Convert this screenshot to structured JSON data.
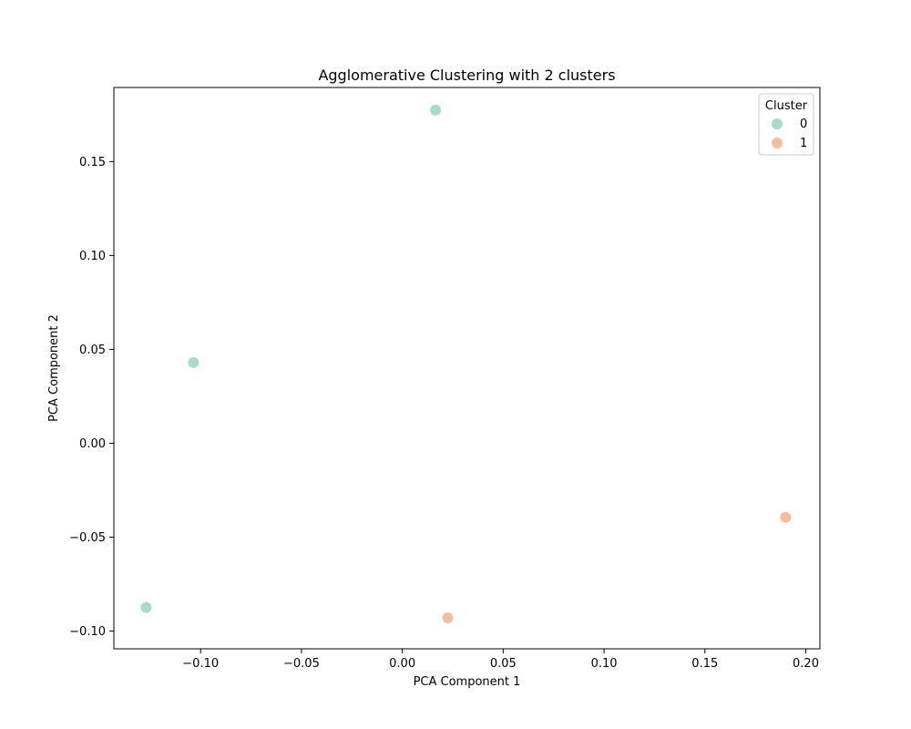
{
  "chart_data": {
    "type": "scatter",
    "title": "Agglomerative Clustering with 2 clusters",
    "xlabel": "PCA Component 1",
    "ylabel": "PCA Component 2",
    "xlim": [
      -0.143,
      0.207
    ],
    "ylim": [
      -0.1095,
      0.1895
    ],
    "xticks": [
      -0.1,
      -0.05,
      0.0,
      0.05,
      0.1,
      0.15,
      0.2
    ],
    "xtick_labels": [
      "−0.10",
      "−0.05",
      "0.00",
      "0.05",
      "0.10",
      "0.15",
      "0.20"
    ],
    "yticks": [
      -0.1,
      -0.05,
      0.0,
      0.05,
      0.1,
      0.15
    ],
    "ytick_labels": [
      "−0.10",
      "−0.05",
      "0.00",
      "0.05",
      "0.10",
      "0.15"
    ],
    "grid": false,
    "legend": {
      "title": "Cluster",
      "placement": "top-right"
    },
    "series": [
      {
        "name": "0",
        "color": "#a6dcc5",
        "points": [
          {
            "x": 0.0165,
            "y": 0.1775
          },
          {
            "x": -0.1035,
            "y": 0.043
          },
          {
            "x": -0.127,
            "y": -0.0875
          }
        ]
      },
      {
        "name": "1",
        "color": "#f9bb9d",
        "points": [
          {
            "x": 0.19,
            "y": -0.0395
          },
          {
            "x": 0.0225,
            "y": -0.093
          }
        ]
      }
    ]
  }
}
